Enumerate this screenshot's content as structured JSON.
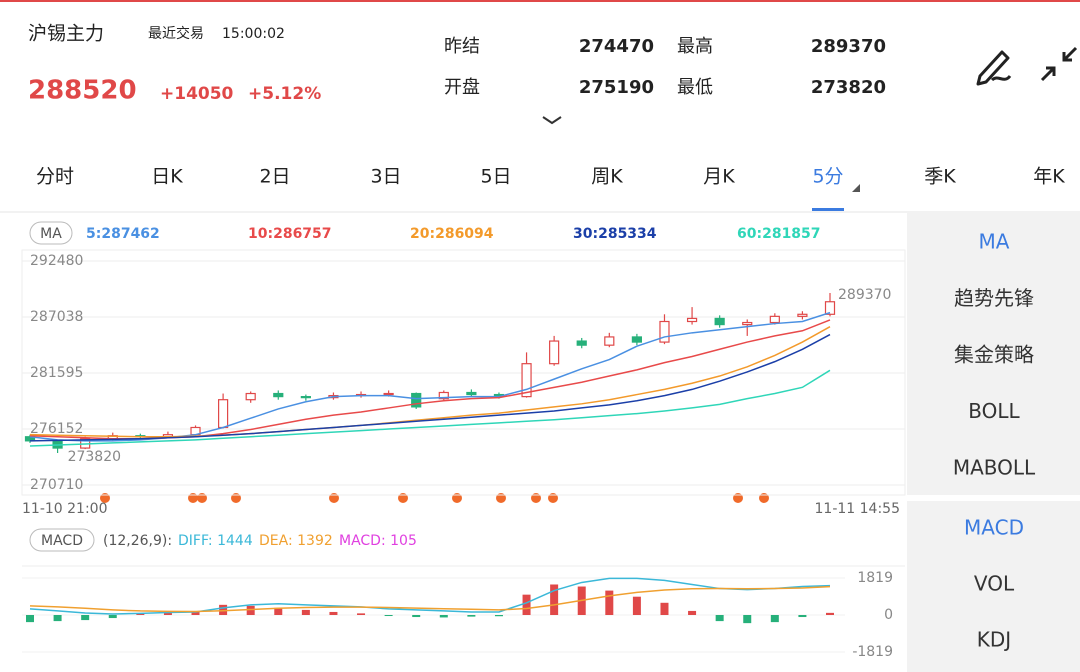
{
  "header": {
    "name": "沪锡主力",
    "trade_label": "最近交易",
    "trade_time": "15:00:02",
    "price": "288520",
    "change": "+14050",
    "change_pct": "+5.12%",
    "stats": [
      {
        "label": "昨结",
        "value": "274470"
      },
      {
        "label": "开盘",
        "value": "275190"
      },
      {
        "label": "最高",
        "value": "289370"
      },
      {
        "label": "最低",
        "value": "273820"
      }
    ]
  },
  "tabs": {
    "items": [
      "分时",
      "日K",
      "2日",
      "3日",
      "5日",
      "周K",
      "月K",
      "5分",
      "季K",
      "年K"
    ],
    "active": 7
  },
  "ma_legend": {
    "label": "MA",
    "items": [
      {
        "text": "5:287462",
        "color": "#4a90e2"
      },
      {
        "text": "10:286757",
        "color": "#e84a4a"
      },
      {
        "text": "20:286094",
        "color": "#f39a2b"
      },
      {
        "text": "30:285334",
        "color": "#1b3fa8"
      },
      {
        "text": "60:281857",
        "color": "#2fd6b8"
      }
    ]
  },
  "price_chart": {
    "type": "candlestick",
    "ylim": [
      270710,
      292480
    ],
    "yticks": [
      292480,
      287038,
      281595,
      276152,
      270710
    ],
    "x_start": "11-10 21:00",
    "x_end": "11-11 14:55",
    "high_label": "289370",
    "low_label": "273820",
    "up_color": "#e04848",
    "down_color": "#26b07a",
    "open": [
      275400,
      275000,
      274300,
      275200,
      275500,
      275400,
      275600,
      276300,
      279000,
      279600,
      279300,
      279200,
      279400,
      279500,
      279600,
      279100,
      279700,
      279500,
      279300,
      282500,
      284700,
      284300,
      285100,
      284600,
      286600,
      286900,
      286300,
      286500,
      287100,
      287300
    ],
    "close": [
      275000,
      274300,
      275200,
      275500,
      275400,
      275600,
      276300,
      279000,
      279600,
      279300,
      279200,
      279400,
      279500,
      279600,
      278300,
      279700,
      279500,
      279300,
      282500,
      284700,
      284300,
      285100,
      284600,
      286600,
      286900,
      286300,
      286500,
      287100,
      287300,
      288520
    ],
    "high": [
      275600,
      275100,
      275400,
      275800,
      275700,
      275900,
      276500,
      279600,
      279800,
      279900,
      279500,
      279700,
      279800,
      279900,
      279700,
      279900,
      280000,
      279700,
      283600,
      285200,
      285000,
      285500,
      285400,
      287300,
      288000,
      287200,
      286800,
      287400,
      287600,
      289370
    ],
    "low": [
      274800,
      273820,
      274200,
      275000,
      275200,
      275300,
      275500,
      276200,
      278700,
      279000,
      278900,
      279000,
      279200,
      279300,
      278100,
      278900,
      279300,
      279100,
      279200,
      282300,
      284000,
      284100,
      284300,
      284400,
      286300,
      286000,
      285200,
      286300,
      286800,
      287100
    ],
    "ma_series": [
      {
        "color": "#4a90e2",
        "values": [
          275400,
          275100,
          275000,
          275000,
          275100,
          275300,
          275600,
          276300,
          277200,
          278100,
          278800,
          279300,
          279400,
          279400,
          279100,
          279200,
          279300,
          279300,
          280000,
          281000,
          282000,
          282900,
          284200,
          285100,
          285500,
          285800,
          286100,
          286400,
          286600,
          287462
        ]
      },
      {
        "color": "#e84a4a",
        "values": [
          275500,
          275400,
          275300,
          275200,
          275200,
          275300,
          275400,
          275700,
          276100,
          276600,
          277100,
          277500,
          277800,
          278200,
          278600,
          278900,
          279100,
          279200,
          279700,
          280200,
          280700,
          281300,
          281900,
          282600,
          283200,
          283900,
          284600,
          285200,
          285700,
          286757
        ]
      },
      {
        "color": "#f39a2b",
        "values": [
          275600,
          275550,
          275500,
          275450,
          275400,
          275400,
          275450,
          275550,
          275700,
          275900,
          276100,
          276300,
          276500,
          276750,
          277000,
          277250,
          277500,
          277700,
          278000,
          278300,
          278600,
          279000,
          279500,
          280000,
          280600,
          281300,
          282200,
          283300,
          284600,
          286094
        ]
      },
      {
        "color": "#1b3fa8",
        "values": [
          275000,
          275050,
          275100,
          275150,
          275200,
          275300,
          275400,
          275550,
          275700,
          275900,
          276100,
          276300,
          276500,
          276700,
          276900,
          277100,
          277300,
          277500,
          277700,
          277900,
          278200,
          278500,
          278900,
          279400,
          280000,
          280800,
          281700,
          282700,
          283900,
          285334
        ]
      },
      {
        "color": "#2fd6b8",
        "values": [
          274500,
          274600,
          274700,
          274800,
          274900,
          275000,
          275100,
          275250,
          275400,
          275550,
          275700,
          275850,
          276000,
          276150,
          276300,
          276450,
          276600,
          276750,
          276900,
          277050,
          277250,
          277450,
          277650,
          277900,
          278200,
          278550,
          279100,
          279600,
          280200,
          281857
        ]
      }
    ]
  },
  "macd_chart": {
    "type": "macd",
    "label": "MACD",
    "params": "(12,26,9):",
    "diff_label": "DIFF: 1444",
    "dea_label": "DEA: 1392",
    "macd_label": "MACD: 105",
    "ylim": [
      -1819,
      1819
    ],
    "yticks": [
      1819,
      0,
      -1819
    ],
    "up_color": "#e04848",
    "down_color": "#26b07a",
    "hist": [
      -350,
      -300,
      -250,
      -150,
      50,
      100,
      150,
      500,
      450,
      350,
      250,
      150,
      80,
      -50,
      -100,
      -120,
      -80,
      -60,
      1000,
      1500,
      1400,
      1200,
      900,
      600,
      200,
      -300,
      -400,
      -350,
      -100,
      105
    ],
    "diff": {
      "color": "#3bb8d8",
      "values": [
        300,
        200,
        100,
        50,
        80,
        120,
        150,
        350,
        500,
        550,
        500,
        450,
        400,
        300,
        250,
        200,
        150,
        150,
        600,
        1200,
        1600,
        1800,
        1800,
        1700,
        1500,
        1300,
        1250,
        1300,
        1400,
        1444
      ]
    },
    "dea": {
      "color": "#f0a030",
      "values": [
        450,
        400,
        330,
        250,
        200,
        180,
        170,
        210,
        270,
        330,
        370,
        390,
        390,
        370,
        340,
        310,
        280,
        250,
        320,
        500,
        720,
        940,
        1110,
        1230,
        1290,
        1300,
        1290,
        1300,
        1330,
        1392
      ]
    },
    "macd_color": "#e040e0"
  },
  "sidebar": {
    "indicators": [
      "MA",
      "趋势先锋",
      "集金策略",
      "BOLL",
      "MABOLL"
    ],
    "sub_indicators": [
      "MACD",
      "VOL",
      "KDJ"
    ]
  }
}
